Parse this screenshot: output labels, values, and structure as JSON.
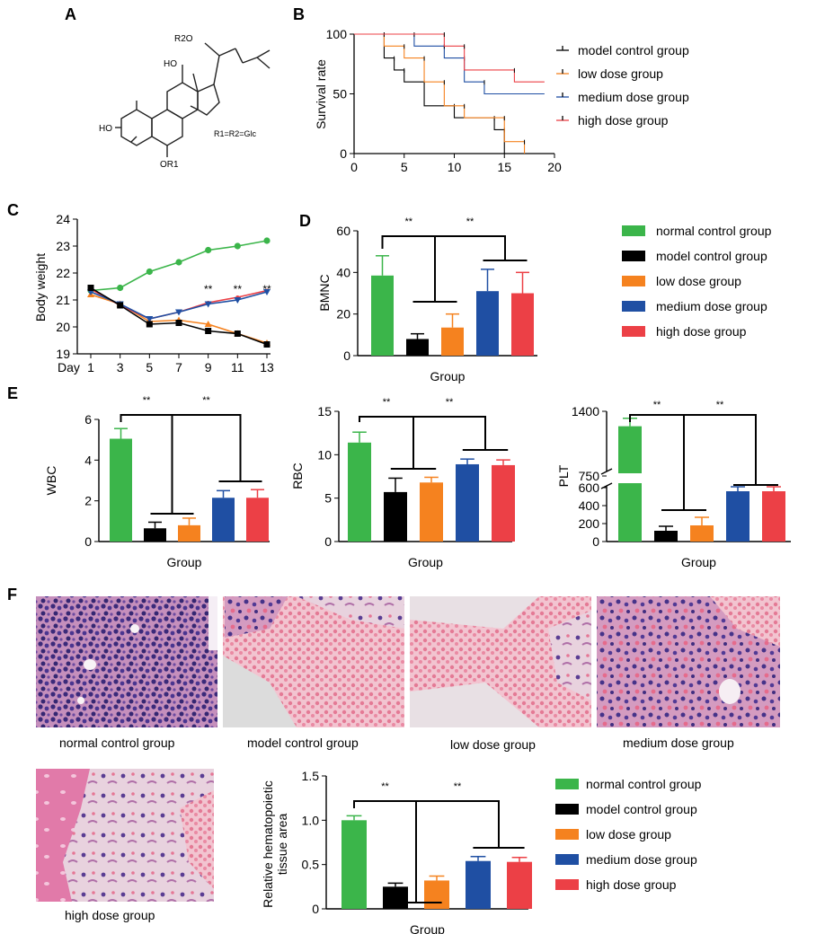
{
  "colors": {
    "normal": "#3bb54a",
    "model": "#000000",
    "low": "#f5821f",
    "medium": "#1f4fa3",
    "high": "#ec4046"
  },
  "panel_labels": {
    "A": "A",
    "B": "B",
    "C": "C",
    "D": "D",
    "E": "E",
    "F": "F"
  },
  "structure": {
    "r2o": "R2O",
    "ho_top": "HO",
    "ho_left": "HO",
    "or1": "OR1",
    "legend": "R1=R2=Glc"
  },
  "histology_captions": [
    "normal control group",
    "model control group",
    "low dose group",
    "medium dose group",
    "high dose group"
  ],
  "sig": "**",
  "chart_data": [
    {
      "id": "B",
      "type": "line",
      "ylabel": "Survival rate",
      "xlim": [
        0,
        20
      ],
      "ylim": [
        0,
        100
      ],
      "xticks": [
        "0",
        "5",
        "10",
        "15",
        "20"
      ],
      "yticks": [
        "0",
        "50",
        "100"
      ],
      "series": [
        {
          "name": "model control group",
          "key": "model",
          "color": "#000000",
          "steps": [
            [
              0,
              100
            ],
            [
              3,
              100
            ],
            [
              3,
              80
            ],
            [
              4,
              80
            ],
            [
              4,
              70
            ],
            [
              5,
              70
            ],
            [
              5,
              60
            ],
            [
              7,
              60
            ],
            [
              7,
              40
            ],
            [
              10,
              40
            ],
            [
              10,
              30
            ],
            [
              14,
              30
            ],
            [
              14,
              20
            ],
            [
              15,
              20
            ],
            [
              15,
              0
            ],
            [
              17,
              0
            ]
          ]
        },
        {
          "name": "low dose group",
          "key": "low",
          "color": "#f5821f",
          "steps": [
            [
              0,
              100
            ],
            [
              3,
              100
            ],
            [
              3,
              90
            ],
            [
              5,
              90
            ],
            [
              5,
              80
            ],
            [
              7,
              80
            ],
            [
              7,
              60
            ],
            [
              9,
              60
            ],
            [
              9,
              40
            ],
            [
              11,
              40
            ],
            [
              11,
              30
            ],
            [
              15,
              30
            ],
            [
              15,
              10
            ],
            [
              17,
              10
            ],
            [
              17,
              0
            ]
          ]
        },
        {
          "name": "medium dose group",
          "key": "medium",
          "color": "#1f4fa3",
          "steps": [
            [
              0,
              100
            ],
            [
              6,
              100
            ],
            [
              6,
              90
            ],
            [
              9,
              90
            ],
            [
              9,
              80
            ],
            [
              11,
              80
            ],
            [
              11,
              60
            ],
            [
              13,
              60
            ],
            [
              13,
              50
            ],
            [
              19,
              50
            ]
          ]
        },
        {
          "name": "high dose group",
          "key": "high",
          "color": "#ec4046",
          "steps": [
            [
              0,
              100
            ],
            [
              9,
              100
            ],
            [
              9,
              90
            ],
            [
              11,
              90
            ],
            [
              11,
              70
            ],
            [
              16,
              70
            ],
            [
              16,
              60
            ],
            [
              19,
              60
            ]
          ]
        }
      ]
    },
    {
      "id": "C",
      "type": "line",
      "ylabel": "Body weight",
      "xlabel": "Day",
      "x": [
        1,
        3,
        5,
        7,
        9,
        11,
        13
      ],
      "ylim": [
        19,
        24
      ],
      "yticks": [
        "19",
        "20",
        "21",
        "22",
        "23",
        "24"
      ],
      "xticks": [
        "1",
        "3",
        "5",
        "7",
        "9",
        "11",
        "13"
      ],
      "series": [
        {
          "name": "normal control group",
          "key": "normal",
          "values": [
            21.35,
            21.45,
            22.05,
            22.4,
            22.85,
            23.0,
            23.2
          ]
        },
        {
          "name": "low dose group",
          "key": "low",
          "values": [
            21.2,
            20.85,
            20.2,
            20.25,
            20.1,
            19.75,
            19.4
          ]
        },
        {
          "name": "high dose group",
          "key": "high",
          "values": [
            21.4,
            20.8,
            20.3,
            20.55,
            20.9,
            21.1,
            21.35
          ]
        },
        {
          "name": "medium dose group",
          "key": "medium",
          "values": [
            21.3,
            20.85,
            20.3,
            20.55,
            20.85,
            21.0,
            21.3
          ]
        },
        {
          "name": "model control group",
          "key": "model",
          "values": [
            21.45,
            20.8,
            20.1,
            20.15,
            19.85,
            19.75,
            19.35
          ]
        }
      ],
      "annotations": [
        {
          "x": 9,
          "text": "**"
        },
        {
          "x": 11,
          "text": "**"
        },
        {
          "x": 13,
          "text": "**"
        }
      ]
    },
    {
      "id": "D",
      "type": "bar",
      "ylabel": "BMNC",
      "xlabel": "Group",
      "ylim": [
        0,
        60
      ],
      "yticks": [
        "0",
        "20",
        "40",
        "60"
      ],
      "categories": [
        "normal control group",
        "model control group",
        "low dose group",
        "medium dose group",
        "high dose group"
      ],
      "keys": [
        "normal",
        "model",
        "low",
        "medium",
        "high"
      ],
      "values": [
        38.5,
        8.0,
        13.5,
        31.0,
        30.0
      ],
      "errors": [
        9.5,
        2.5,
        6.5,
        10.5,
        10.0
      ]
    },
    {
      "id": "E1",
      "type": "bar",
      "ylabel": "WBC",
      "xlabel": "Group",
      "ylim": [
        0,
        6
      ],
      "yticks": [
        "0",
        "2",
        "4",
        "6"
      ],
      "keys": [
        "normal",
        "model",
        "low",
        "medium",
        "high"
      ],
      "values": [
        5.05,
        0.65,
        0.8,
        2.15,
        2.15
      ],
      "errors": [
        0.5,
        0.3,
        0.35,
        0.35,
        0.4
      ]
    },
    {
      "id": "E2",
      "type": "bar",
      "ylabel": "RBC",
      "xlabel": "Group",
      "ylim": [
        0,
        15
      ],
      "yticks": [
        "0",
        "5",
        "10",
        "15"
      ],
      "keys": [
        "normal",
        "model",
        "low",
        "medium",
        "high"
      ],
      "values": [
        11.4,
        5.7,
        6.8,
        8.9,
        8.8
      ],
      "errors": [
        1.2,
        1.6,
        0.6,
        0.6,
        0.6
      ]
    },
    {
      "id": "E3",
      "type": "bar",
      "ylabel": "PLT",
      "xlabel": "Group",
      "yticks": [
        "0",
        "200",
        "400",
        "600",
        "750",
        "1400"
      ],
      "axis_break": [
        650,
        750
      ],
      "keys": [
        "normal",
        "model",
        "low",
        "medium",
        "high"
      ],
      "values": [
        1250,
        120,
        180,
        560,
        560
      ],
      "errors": [
        80,
        50,
        90,
        50,
        50
      ]
    },
    {
      "id": "F",
      "type": "bar",
      "ylabel": "Relative hematopoietic tissue area",
      "xlabel": "Group",
      "ylim": [
        0,
        1.5
      ],
      "yticks": [
        "0",
        "0.5",
        "1.0",
        "1.5"
      ],
      "keys": [
        "normal",
        "model",
        "low",
        "medium",
        "high"
      ],
      "values": [
        1.0,
        0.25,
        0.32,
        0.54,
        0.53
      ],
      "errors": [
        0.05,
        0.04,
        0.05,
        0.05,
        0.05
      ]
    }
  ],
  "legend_dose": [
    "model control group",
    "low dose group",
    "medium dose group",
    "high dose group"
  ],
  "legend_groups": [
    "normal control group",
    "model control group",
    "low dose group",
    "medium dose group",
    "high dose group"
  ]
}
